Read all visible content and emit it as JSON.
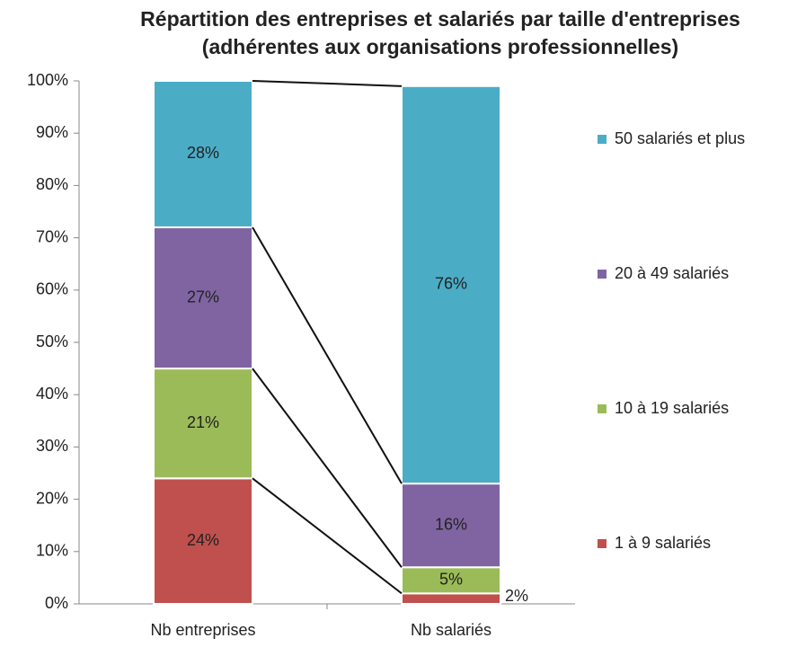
{
  "chart_data": {
    "type": "stacked_bar",
    "title": "Répartition des entreprises et salariés par taille d'entreprises (adhérentes aux organisations professionnelles)",
    "categories": [
      "Nb entreprises",
      "Nb salariés"
    ],
    "series": [
      {
        "name": "1 à 9 salariés",
        "color": "#c0504d",
        "values": [
          24,
          2
        ],
        "value_labels": [
          "24%",
          "2%"
        ]
      },
      {
        "name": "10 à 19 salariés",
        "color": "#9bbb59",
        "values": [
          21,
          5
        ],
        "value_labels": [
          "21%",
          "5%"
        ]
      },
      {
        "name": "20 à 49 salariés",
        "color": "#8064a2",
        "values": [
          27,
          16
        ],
        "value_labels": [
          "27%",
          "16%"
        ]
      },
      {
        "name": "50 salariés et plus",
        "color": "#4bacc6",
        "values": [
          28,
          76
        ],
        "value_labels": [
          "28%",
          "76%"
        ]
      }
    ],
    "ylim": [
      0,
      100
    ],
    "yticks": [
      {
        "value": 0,
        "label": "0%"
      },
      {
        "value": 10,
        "label": "10%"
      },
      {
        "value": 20,
        "label": "20%"
      },
      {
        "value": 30,
        "label": "30%"
      },
      {
        "value": 40,
        "label": "40%"
      },
      {
        "value": 50,
        "label": "50%"
      },
      {
        "value": 60,
        "label": "60%"
      },
      {
        "value": 70,
        "label": "70%"
      },
      {
        "value": 80,
        "label": "80%"
      },
      {
        "value": 90,
        "label": "90%"
      },
      {
        "value": 100,
        "label": "100%"
      }
    ],
    "legend": "right"
  }
}
